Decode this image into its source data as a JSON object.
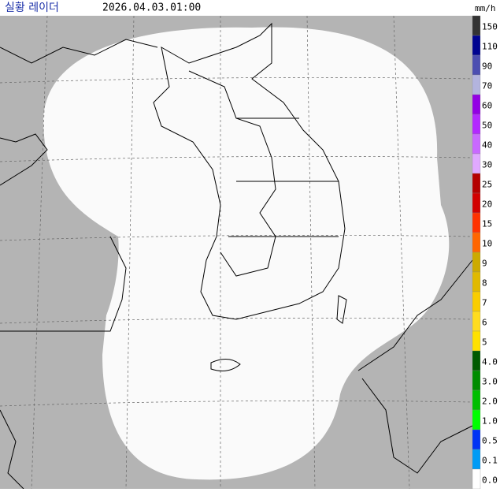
{
  "header": {
    "title": "실황 레이더",
    "timestamp": "2026.04.03.01:00",
    "unit": "mm/h"
  },
  "legend": [
    {
      "label": "150",
      "color": "#333333"
    },
    {
      "label": "110",
      "color": "#000390"
    },
    {
      "label": "90",
      "color": "#4c4eb1"
    },
    {
      "label": "70",
      "color": "#b3b4de"
    },
    {
      "label": "60",
      "color": "#9300e4"
    },
    {
      "label": "50",
      "color": "#b329ff"
    },
    {
      "label": "40",
      "color": "#c969ff"
    },
    {
      "label": "30",
      "color": "#e0a9ff"
    },
    {
      "label": "25",
      "color": "#b40000"
    },
    {
      "label": "20",
      "color": "#d20000"
    },
    {
      "label": "15",
      "color": "#ff3200"
    },
    {
      "label": "10",
      "color": "#ff6600"
    },
    {
      "label": "9",
      "color": "#ccaa00"
    },
    {
      "label": "8",
      "color": "#e0b900"
    },
    {
      "label": "7",
      "color": "#f9cd00"
    },
    {
      "label": "6",
      "color": "#ffdc1f"
    },
    {
      "label": "5",
      "color": "#ffe100"
    },
    {
      "label": "4.0",
      "color": "#005a00"
    },
    {
      "label": "3.0",
      "color": "#008c00"
    },
    {
      "label": "2.0",
      "color": "#00be00"
    },
    {
      "label": "1.0",
      "color": "#00ff00"
    },
    {
      "label": "0.5",
      "color": "#0033f5"
    },
    {
      "label": "0.1",
      "color": "#009bf5"
    },
    {
      "label": "0.0",
      "color": "#ffffff"
    }
  ]
}
